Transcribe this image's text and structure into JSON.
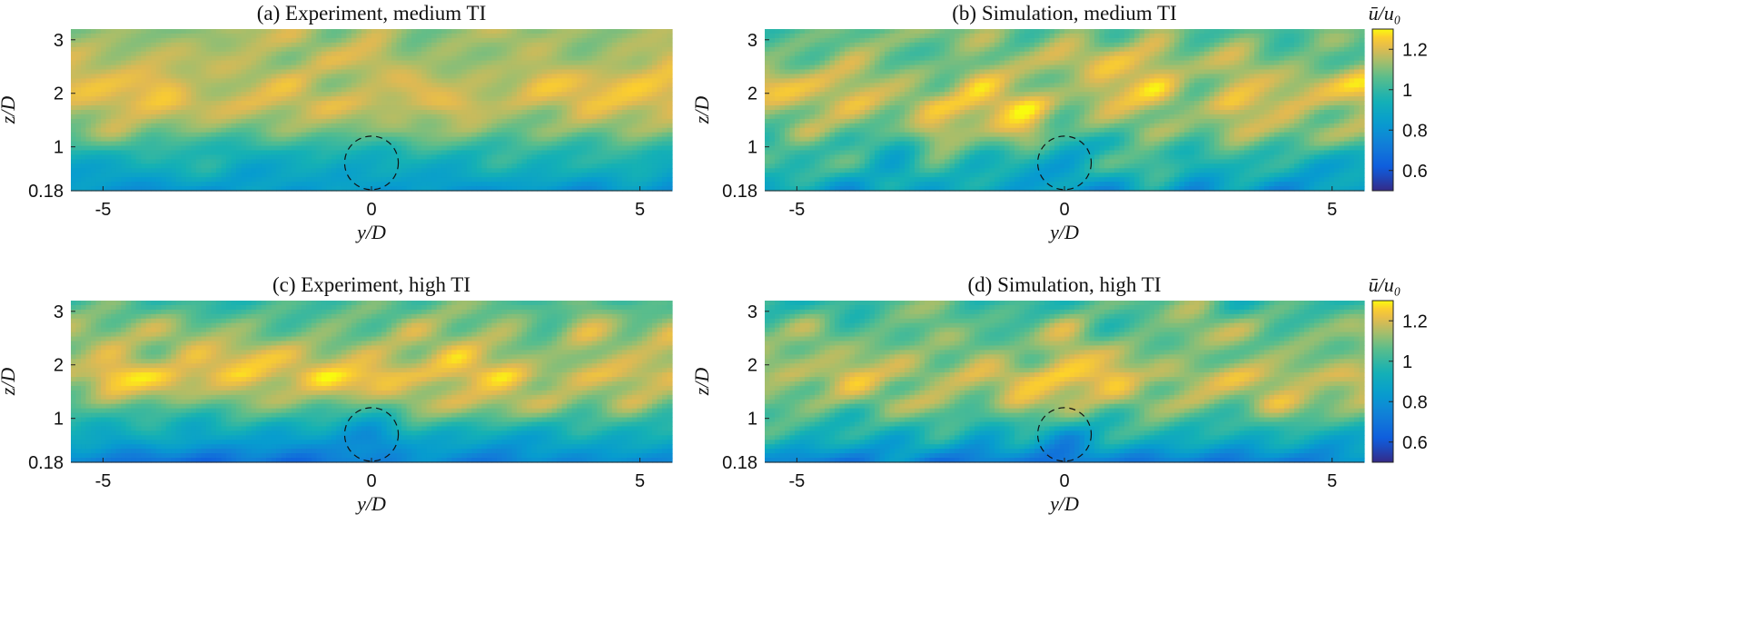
{
  "figure": {
    "colorbar_label": "ū/u₀"
  },
  "chart_data": [
    {
      "type": "heatmap",
      "title": "(a) Experiment, medium TI",
      "xlabel": "y/D",
      "ylabel": "z/D",
      "xlim": [
        -5.6,
        5.6
      ],
      "ylim": [
        0.18,
        3.2
      ],
      "xticks": [
        -5,
        0,
        5
      ],
      "yticks": [
        0.18,
        1,
        2,
        3
      ],
      "rotor_circle": {
        "center_y": 0,
        "center_z": 0.7,
        "radius": 0.5,
        "style": "dashed"
      },
      "colormap": "parula",
      "clim": [
        0.5,
        1.3
      ],
      "profile": [
        {
          "z": 0.18,
          "value": 0.82
        },
        {
          "z": 0.5,
          "value": 0.9
        },
        {
          "z": 0.9,
          "value": 0.98
        },
        {
          "z": 1.3,
          "value": 1.12
        },
        {
          "z": 1.8,
          "value": 1.2
        },
        {
          "z": 2.4,
          "value": 1.17
        },
        {
          "z": 3.2,
          "value": 1.14
        }
      ],
      "noise": 0.06,
      "wake_deficit": 0.06,
      "seed": 11
    },
    {
      "type": "heatmap",
      "title": "(b) Simulation, medium TI",
      "xlabel": "y/D",
      "ylabel": "z/D",
      "xlim": [
        -5.6,
        5.6
      ],
      "ylim": [
        0.18,
        3.2
      ],
      "xticks": [
        -5,
        0,
        5
      ],
      "yticks": [
        0.18,
        1,
        2,
        3
      ],
      "rotor_circle": {
        "center_y": 0,
        "center_z": 0.7,
        "radius": 0.5,
        "style": "dashed"
      },
      "colormap": "parula",
      "clim": [
        0.5,
        1.3
      ],
      "profile": [
        {
          "z": 0.18,
          "value": 0.85
        },
        {
          "z": 0.5,
          "value": 0.93
        },
        {
          "z": 0.9,
          "value": 1.0
        },
        {
          "z": 1.3,
          "value": 1.13
        },
        {
          "z": 1.8,
          "value": 1.2
        },
        {
          "z": 2.4,
          "value": 1.15
        },
        {
          "z": 3.2,
          "value": 1.07
        }
      ],
      "noise": 0.1,
      "wake_deficit": 0.06,
      "seed": 23
    },
    {
      "type": "heatmap",
      "title": "(c) Experiment, high TI",
      "xlabel": "y/D",
      "ylabel": "z/D",
      "xlim": [
        -5.6,
        5.6
      ],
      "ylim": [
        0.18,
        3.2
      ],
      "xticks": [
        -5,
        0,
        5
      ],
      "yticks": [
        0.18,
        1,
        2,
        3
      ],
      "rotor_circle": {
        "center_y": 0,
        "center_z": 0.7,
        "radius": 0.5,
        "style": "dashed"
      },
      "colormap": "parula",
      "clim": [
        0.5,
        1.3
      ],
      "profile": [
        {
          "z": 0.18,
          "value": 0.72
        },
        {
          "z": 0.5,
          "value": 0.85
        },
        {
          "z": 0.9,
          "value": 0.97
        },
        {
          "z": 1.3,
          "value": 1.12
        },
        {
          "z": 1.8,
          "value": 1.22
        },
        {
          "z": 2.4,
          "value": 1.14
        },
        {
          "z": 3.2,
          "value": 1.06
        }
      ],
      "noise": 0.08,
      "wake_deficit": 0.07,
      "seed": 37
    },
    {
      "type": "heatmap",
      "title": "(d) Simulation, high TI",
      "xlabel": "y/D",
      "ylabel": "z/D",
      "xlim": [
        -5.6,
        5.6
      ],
      "ylim": [
        0.18,
        3.2
      ],
      "xticks": [
        -5,
        0,
        5
      ],
      "yticks": [
        0.18,
        1,
        2,
        3
      ],
      "rotor_circle": {
        "center_y": 0,
        "center_z": 0.7,
        "radius": 0.5,
        "style": "dashed"
      },
      "colormap": "parula",
      "clim": [
        0.5,
        1.3
      ],
      "profile": [
        {
          "z": 0.18,
          "value": 0.75
        },
        {
          "z": 0.5,
          "value": 0.88
        },
        {
          "z": 0.9,
          "value": 1.0
        },
        {
          "z": 1.3,
          "value": 1.13
        },
        {
          "z": 1.8,
          "value": 1.2
        },
        {
          "z": 2.4,
          "value": 1.12
        },
        {
          "z": 3.2,
          "value": 1.05
        }
      ],
      "noise": 0.1,
      "wake_deficit": 0.07,
      "seed": 53
    }
  ],
  "colorbar": {
    "ticks": [
      0.6,
      0.8,
      1,
      1.2
    ],
    "range": [
      0.5,
      1.3
    ]
  }
}
